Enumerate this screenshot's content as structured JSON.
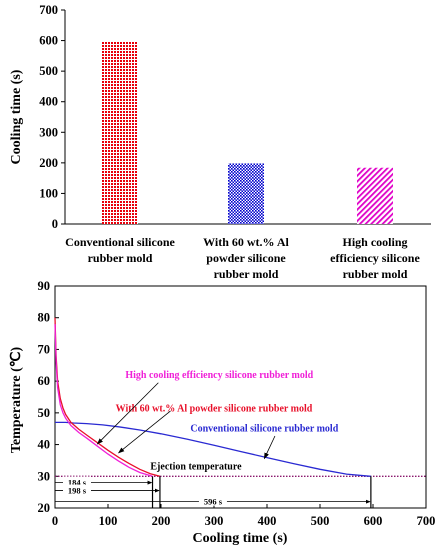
{
  "chart_data": [
    {
      "type": "bar",
      "ylabel": "Cooling time (s)",
      "ylim": [
        0,
        700
      ],
      "yticks": [
        "0",
        "100",
        "200",
        "300",
        "400",
        "500",
        "600",
        "700"
      ],
      "categories": [
        [
          "Conventional silicone",
          "rubber mold"
        ],
        [
          "With 60 wt.% Al",
          "powder silicone",
          "rubber mold"
        ],
        [
          "High cooling",
          "efficiency silicone",
          "rubber mold"
        ]
      ],
      "values": [
        596,
        198,
        184
      ],
      "bar_colors": [
        "#e8000b",
        "#0000cc",
        "#e000c8"
      ],
      "bar_patterns": [
        "dots",
        "checker",
        "diagonal"
      ]
    },
    {
      "type": "line",
      "xlabel": "Cooling time (s)",
      "ylabel": "Temperature (℃)",
      "xlim": [
        0,
        700
      ],
      "ylim": [
        20,
        90
      ],
      "xticks": [
        "0",
        "100",
        "200",
        "300",
        "400",
        "500",
        "600",
        "700"
      ],
      "yticks": [
        "20",
        "30",
        "40",
        "50",
        "60",
        "70",
        "80",
        "90"
      ],
      "series": [
        {
          "name": "Conventional silicone rubber mold",
          "color": "#2a2ad2",
          "x": [
            0,
            2,
            5,
            10,
            20,
            35,
            60,
            90,
            120,
            160,
            200,
            250,
            300,
            350,
            400,
            450,
            500,
            550,
            596
          ],
          "y": [
            47,
            47,
            47,
            47,
            47,
            46.8,
            46.6,
            46.2,
            45.6,
            44.6,
            43.4,
            41.7,
            39.8,
            37.8,
            35.9,
            34.0,
            32.2,
            30.7,
            30
          ]
        },
        {
          "name": "With 60 wt.% Al powder silicone rubber mold",
          "color": "#e8102a",
          "x": [
            0,
            2,
            5,
            10,
            15,
            20,
            30,
            45,
            60,
            80,
            100,
            120,
            140,
            160,
            180,
            198
          ],
          "y": [
            80,
            68,
            60,
            54.5,
            51.5,
            49.5,
            47,
            44.8,
            43,
            40.6,
            38.2,
            36,
            34,
            32.2,
            30.8,
            30
          ]
        },
        {
          "name": "High cooling efficiency silicone rubber mold",
          "color": "#f020d8",
          "x": [
            0,
            2,
            5,
            10,
            15,
            20,
            30,
            45,
            60,
            80,
            100,
            120,
            140,
            160,
            184
          ],
          "y": [
            78,
            66,
            58,
            52.5,
            50,
            48.3,
            46,
            43.8,
            42,
            39.5,
            37,
            34.8,
            32.8,
            31.2,
            30
          ]
        }
      ],
      "reference_line": {
        "label": "Ejection temperature",
        "y": 30,
        "color": "#8b1a6e"
      },
      "markers": [
        {
          "label": "184 s",
          "x": 184
        },
        {
          "label": "198 s",
          "x": 198
        },
        {
          "label": "596 s",
          "x": 596
        }
      ]
    }
  ]
}
